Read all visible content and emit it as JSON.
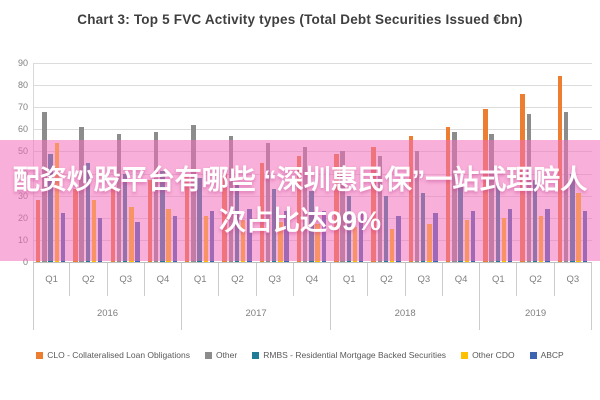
{
  "title": "Chart 3: Top 5 FVC Activity types (Total Debt Securities Issued €bn)",
  "overlay": {
    "line1": "配资炒股平台有哪些 “深圳惠民保”一站式理赔人",
    "line2": "次占比达99%"
  },
  "chart_data": {
    "type": "bar",
    "title": "Chart 3: Top 5 FVC Activity types (Total Debt Securities Issued €bn)",
    "xlabel": "",
    "ylabel": "",
    "ylim": [
      0,
      90
    ],
    "ytick_step": 10,
    "grid": true,
    "legend_position": "bottom",
    "years": [
      {
        "label": "2016",
        "quarters": [
          "Q1",
          "Q2",
          "Q3",
          "Q4"
        ]
      },
      {
        "label": "2017",
        "quarters": [
          "Q1",
          "Q2",
          "Q3",
          "Q4"
        ]
      },
      {
        "label": "2018",
        "quarters": [
          "Q1",
          "Q2",
          "Q3",
          "Q4"
        ]
      },
      {
        "label": "2019",
        "quarters": [
          "Q1",
          "Q2",
          "Q3"
        ]
      }
    ],
    "categories": [
      "Q1 2016",
      "Q2 2016",
      "Q3 2016",
      "Q4 2016",
      "Q1 2017",
      "Q2 2017",
      "Q3 2017",
      "Q4 2017",
      "Q1 2018",
      "Q2 2018",
      "Q3 2018",
      "Q4 2018",
      "Q1 2019",
      "Q2 2019",
      "Q3 2019"
    ],
    "series": [
      {
        "name": "CLO - Collateralised Loan Obligations",
        "color": "#ED7D31",
        "values": [
          28,
          33,
          35,
          37,
          39,
          40,
          45,
          48,
          49,
          52,
          57,
          61,
          69,
          76,
          84
        ]
      },
      {
        "name": "Other",
        "color": "#8C8C8C",
        "values": [
          68,
          61,
          58,
          59,
          62,
          57,
          54,
          52,
          50,
          48,
          50,
          59,
          58,
          67,
          68
        ]
      },
      {
        "name": "RMBS - Residential Mortgage Backed Securities",
        "color": "#1F7B96",
        "values": [
          49,
          45,
          40,
          41,
          38,
          36,
          33,
          32,
          30,
          30,
          31,
          34,
          35,
          37,
          40
        ]
      },
      {
        "name": "Other CDO",
        "color": "#FFC000",
        "values": [
          54,
          28,
          25,
          24,
          21,
          19,
          18,
          17,
          16,
          15,
          17,
          19,
          20,
          21,
          31
        ]
      },
      {
        "name": "ABCP",
        "color": "#3C64B1",
        "values": [
          22,
          20,
          18,
          21,
          23,
          24,
          23,
          23,
          22,
          21,
          22,
          23,
          24,
          24,
          23
        ]
      }
    ]
  }
}
